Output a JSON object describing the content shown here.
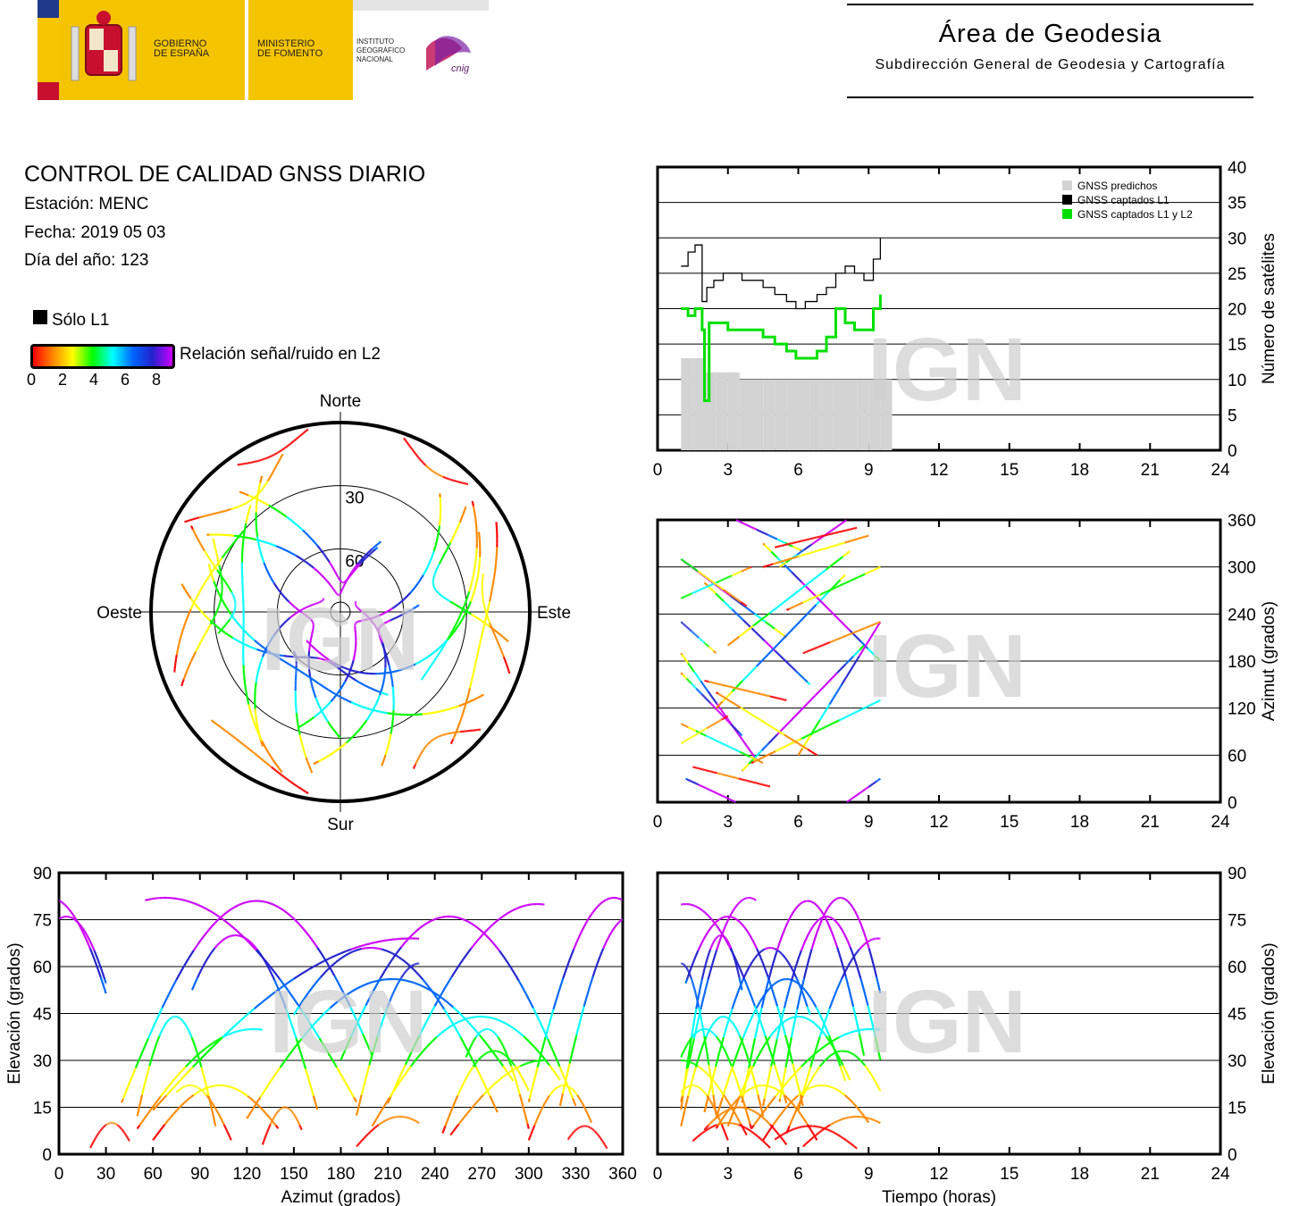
{
  "header": {
    "gobierno": [
      "GOBIERNO",
      "DE ESPAÑA"
    ],
    "ministerio": [
      "MINISTERIO",
      "DE FOMENTO"
    ],
    "instituto": [
      "INSTITUTO",
      "GEOGRÁFICO",
      "NACIONAL"
    ],
    "cnig": "cnig",
    "area_title": "Área de Geodesia",
    "area_subtitle": "Subdirección General de Geodesia y Cartografía"
  },
  "info": {
    "title": "CONTROL DE CALIDAD GNSS DIARIO",
    "station": "Estación: MENC",
    "date": "Fecha: 2019 05 03",
    "doy": "Día del año: 123"
  },
  "legend": {
    "only_l1": "Sólo L1",
    "snr_label": "Relación señal/ruido en L2",
    "snr_ticks": [
      "0",
      "2",
      "4",
      "6",
      "8"
    ],
    "colorbar": [
      "#ff0000",
      "#ff8800",
      "#ffff00",
      "#00ff00",
      "#00ffff",
      "#0066ff",
      "#2222cc",
      "#cc00ff"
    ]
  },
  "watermark": "IGN",
  "chart_data": [
    {
      "type": "polar-skyplot",
      "labels": {
        "north": "Norte",
        "south": "Sur",
        "east": "Este",
        "west": "Oeste"
      },
      "ring_labels": [
        "30",
        "60"
      ],
      "elevation_rings": [
        30,
        60
      ]
    },
    {
      "type": "bar+line",
      "ylabel": "Número de satélites",
      "x_ticks": [
        "0",
        "3",
        "6",
        "9",
        "12",
        "15",
        "18",
        "21",
        "24"
      ],
      "y_ticks": [
        "0",
        "5",
        "10",
        "15",
        "20",
        "25",
        "30",
        "35",
        "40"
      ],
      "xlim": [
        0,
        24
      ],
      "ylim": [
        0,
        40
      ],
      "legend": [
        {
          "name": "GNSS predichos",
          "color": "#d3d3d3"
        },
        {
          "name": "GNSS captados L1",
          "color": "#000000"
        },
        {
          "name": "GNSS captados L1 y L2",
          "color": "#00e000"
        }
      ],
      "series": [
        {
          "name": "GNSS predichos",
          "x": [
            1.0,
            1.5,
            2.0,
            2.5,
            3.0,
            3.5,
            4.0,
            4.5,
            5.0,
            5.5,
            6.0,
            6.5,
            7.0,
            7.5,
            8.0,
            8.5,
            9.0,
            9.5
          ],
          "values": [
            13,
            13,
            11,
            11,
            11,
            10,
            10,
            10,
            10,
            10,
            10,
            10,
            10,
            10,
            10,
            10,
            10,
            10
          ]
        },
        {
          "name": "GNSS captados L1",
          "x": [
            1.0,
            1.3,
            1.6,
            1.9,
            2.1,
            2.4,
            2.8,
            3.2,
            3.6,
            4.0,
            4.5,
            5.0,
            5.5,
            5.9,
            6.3,
            6.8,
            7.2,
            7.6,
            8.0,
            8.4,
            8.8,
            9.2,
            9.5
          ],
          "values": [
            26,
            28,
            29,
            21,
            23,
            24,
            25,
            25,
            24,
            24,
            23,
            22,
            21,
            20,
            21,
            22,
            23,
            25,
            26,
            25,
            24,
            27,
            30
          ]
        },
        {
          "name": "GNSS captados L1 y L2",
          "x": [
            1.0,
            1.3,
            1.6,
            1.9,
            2.0,
            2.2,
            2.6,
            3.0,
            3.5,
            4.0,
            4.5,
            5.0,
            5.5,
            5.9,
            6.3,
            6.8,
            7.2,
            7.6,
            8.0,
            8.4,
            8.8,
            9.2,
            9.5
          ],
          "values": [
            20,
            19,
            20,
            17,
            7,
            18,
            18,
            17,
            17,
            17,
            16,
            15,
            14,
            13,
            13,
            14,
            16,
            20,
            18,
            17,
            17,
            20,
            22
          ]
        }
      ]
    },
    {
      "type": "scatter",
      "ylabel": "Azimut (grados)",
      "x_ticks": [
        "0",
        "3",
        "6",
        "9",
        "12",
        "15",
        "18",
        "21",
        "24"
      ],
      "y_ticks": [
        "0",
        "60",
        "120",
        "180",
        "240",
        "300",
        "360"
      ],
      "xlim": [
        0,
        24
      ],
      "ylim": [
        0,
        360
      ]
    },
    {
      "type": "scatter",
      "xlabel": "Azimut (grados)",
      "ylabel": "Elevación (grados)",
      "x_ticks": [
        "0",
        "30",
        "60",
        "90",
        "120",
        "150",
        "180",
        "210",
        "240",
        "270",
        "300",
        "330",
        "360"
      ],
      "y_ticks": [
        "0",
        "15",
        "30",
        "45",
        "60",
        "75",
        "90"
      ],
      "xlim": [
        0,
        360
      ],
      "ylim": [
        0,
        90
      ]
    },
    {
      "type": "scatter",
      "xlabel": "Tiempo (horas)",
      "ylabel": "Elevación (grados)",
      "x_ticks": [
        "0",
        "3",
        "6",
        "9",
        "12",
        "15",
        "18",
        "21",
        "24"
      ],
      "y_ticks": [
        "0",
        "15",
        "30",
        "45",
        "60",
        "75",
        "90"
      ],
      "xlim": [
        0,
        24
      ],
      "ylim": [
        0,
        90
      ]
    }
  ],
  "tracks": [
    {
      "t0": 1.0,
      "t1": 4.2,
      "az0": 190,
      "az1": 55,
      "elmax": 82,
      "tmax": 3.9
    },
    {
      "t0": 1.0,
      "t1": 5.5,
      "az0": 310,
      "az1": 210,
      "elmax": 80,
      "tmax": 1.2
    },
    {
      "t0": 1.0,
      "t1": 3.6,
      "az0": 165,
      "az1": 85,
      "elmax": 70,
      "tmax": 2.7
    },
    {
      "t0": 1.0,
      "t1": 2.5,
      "az0": 230,
      "az1": 190,
      "elmax": 61,
      "tmax": 1.0
    },
    {
      "t0": 1.2,
      "t1": 6.2,
      "az0": 30,
      "az1": 320,
      "elmax": 76,
      "tmax": 3.0
    },
    {
      "t0": 2.0,
      "t1": 6.5,
      "az0": 280,
      "az1": 150,
      "elmax": 66,
      "tmax": 4.8
    },
    {
      "t0": 2.5,
      "t1": 8.0,
      "az0": 120,
      "az1": 290,
      "elmax": 56,
      "tmax": 5.5
    },
    {
      "t0": 3.6,
      "t1": 8.8,
      "az0": 40,
      "az1": 200,
      "elmax": 81,
      "tmax": 6.4
    },
    {
      "t0": 4.5,
      "t1": 9.5,
      "az0": 330,
      "az1": 180,
      "elmax": 76,
      "tmax": 7.2
    },
    {
      "t0": 5.2,
      "t1": 9.5,
      "az0": 300,
      "az1": 30,
      "elmax": 82,
      "tmax": 7.8
    },
    {
      "t0": 6.0,
      "t1": 9.5,
      "az0": 60,
      "az1": 230,
      "elmax": 69,
      "tmax": 9.4
    },
    {
      "t0": 1.0,
      "t1": 4.5,
      "az0": 100,
      "az1": 50,
      "elmax": 44,
      "tmax": 2.8
    },
    {
      "t0": 1.0,
      "t1": 4.0,
      "az0": 260,
      "az1": 300,
      "elmax": 40,
      "tmax": 2.0
    },
    {
      "t0": 3.0,
      "t1": 8.2,
      "az0": 200,
      "az1": 320,
      "elmax": 44,
      "tmax": 6.0
    },
    {
      "t0": 4.0,
      "t1": 9.5,
      "az0": 50,
      "az1": 130,
      "elmax": 40,
      "tmax": 9.1
    },
    {
      "t0": 5.5,
      "t1": 9.5,
      "az0": 245,
      "az1": 300,
      "elmax": 33,
      "tmax": 7.9
    },
    {
      "t0": 1.0,
      "t1": 3.8,
      "az0": 310,
      "az1": 250,
      "elmax": 30,
      "tmax": 1.0
    },
    {
      "t0": 1.0,
      "t1": 3.0,
      "az0": 75,
      "az1": 110,
      "elmax": 22,
      "tmax": 1.5
    },
    {
      "t0": 2.5,
      "t1": 6.8,
      "az0": 140,
      "az1": 60,
      "elmax": 22,
      "tmax": 4.5
    },
    {
      "t0": 4.5,
      "t1": 9.0,
      "az0": 300,
      "az1": 340,
      "elmax": 22,
      "tmax": 7.0
    },
    {
      "t0": 1.5,
      "t1": 4.8,
      "az0": 45,
      "az1": 20,
      "elmax": 10,
      "tmax": 3.0
    },
    {
      "t0": 5.0,
      "t1": 8.5,
      "az0": 325,
      "az1": 350,
      "elmax": 9,
      "tmax": 6.5
    },
    {
      "t0": 6.2,
      "t1": 9.5,
      "az0": 190,
      "az1": 230,
      "elmax": 12,
      "tmax": 8.5
    },
    {
      "t0": 2.0,
      "t1": 5.5,
      "az0": 155,
      "az1": 130,
      "elmax": 15,
      "tmax": 3.5
    }
  ]
}
